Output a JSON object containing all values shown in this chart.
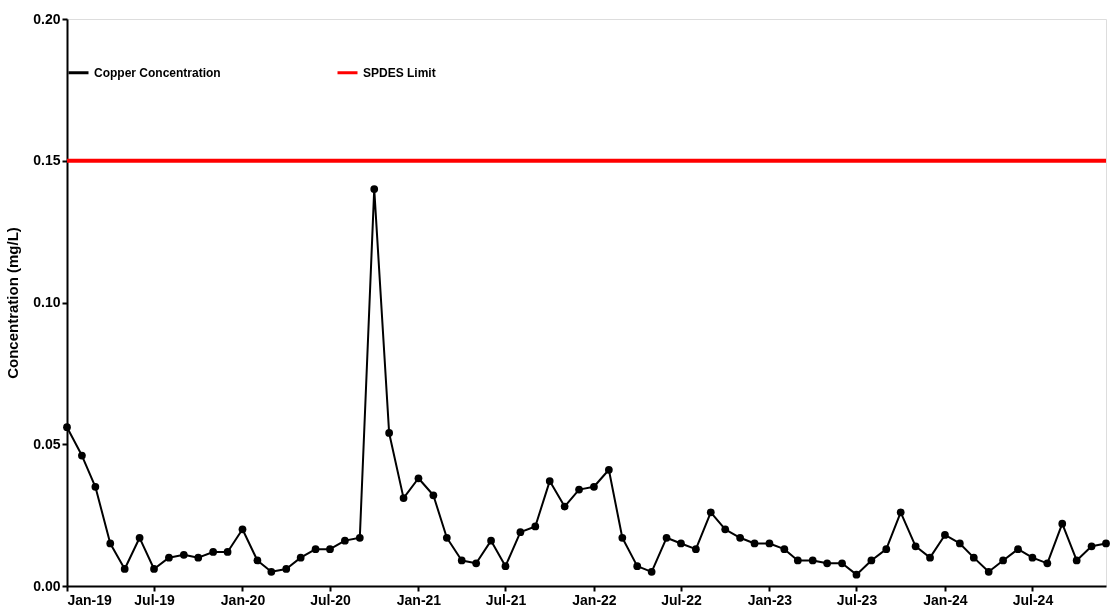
{
  "chart_data": {
    "type": "line",
    "ylabel": "Concentration (mg/L)",
    "x": [
      "2019-01",
      "2019-02",
      "2019-03",
      "2019-04",
      "2019-05",
      "2019-06",
      "2019-07",
      "2019-08",
      "2019-09",
      "2019-10",
      "2019-11",
      "2019-12",
      "2020-01",
      "2020-02",
      "2020-03",
      "2020-04",
      "2020-05",
      "2020-06",
      "2020-07",
      "2020-08",
      "2020-09",
      "2020-10",
      "2020-11",
      "2020-12",
      "2021-01",
      "2021-02",
      "2021-03",
      "2021-04",
      "2021-05",
      "2021-06",
      "2021-07",
      "2021-08",
      "2021-09",
      "2021-10",
      "2021-11",
      "2021-12",
      "2022-01",
      "2022-02",
      "2022-03",
      "2022-04",
      "2022-05",
      "2022-06",
      "2022-07",
      "2022-08",
      "2022-09",
      "2022-10",
      "2022-11",
      "2022-12",
      "2023-01",
      "2023-02",
      "2023-03",
      "2023-04",
      "2023-05",
      "2023-06",
      "2023-07",
      "2023-08",
      "2023-09",
      "2023-10",
      "2023-11",
      "2023-12",
      "2024-01",
      "2024-02",
      "2024-03",
      "2024-04",
      "2024-05",
      "2024-06",
      "2024-07",
      "2024-08",
      "2024-09",
      "2024-10",
      "2024-11",
      "2024-12"
    ],
    "series": [
      {
        "name": "Copper Concentration",
        "color": "#000000",
        "values": [
          0.056,
          0.046,
          0.035,
          0.015,
          0.006,
          0.017,
          0.006,
          0.01,
          0.011,
          0.01,
          0.012,
          0.012,
          0.02,
          0.009,
          0.005,
          0.006,
          0.01,
          0.013,
          0.013,
          0.016,
          0.017,
          0.14,
          0.054,
          0.031,
          0.038,
          0.032,
          0.017,
          0.009,
          0.008,
          0.016,
          0.007,
          0.019,
          0.021,
          0.037,
          0.028,
          0.034,
          0.035,
          0.041,
          0.017,
          0.007,
          0.005,
          0.017,
          0.015,
          0.013,
          0.026,
          0.02,
          0.017,
          0.015,
          0.015,
          0.013,
          0.009,
          0.009,
          0.008,
          0.008,
          0.004,
          0.009,
          0.013,
          0.026,
          0.014,
          0.01,
          0.018,
          0.015,
          0.01,
          0.005,
          0.009,
          0.013,
          0.01,
          0.008,
          0.022,
          0.009,
          0.014,
          0.015
        ]
      }
    ],
    "ref_lines": [
      {
        "axis": "y",
        "value": 0.15,
        "label": "SPDES Limit",
        "color": "#ff0000",
        "line_style": "solid"
      }
    ],
    "xlim": [
      "2019-01",
      "2024-12"
    ],
    "xticks": [
      {
        "value": "2019-01",
        "label": "Jan-19"
      },
      {
        "value": "2019-07",
        "label": "Jul-19"
      },
      {
        "value": "2020-01",
        "label": "Jan-20"
      },
      {
        "value": "2020-07",
        "label": "Jul-20"
      },
      {
        "value": "2021-01",
        "label": "Jan-21"
      },
      {
        "value": "2021-07",
        "label": "Jul-21"
      },
      {
        "value": "2022-01",
        "label": "Jan-22"
      },
      {
        "value": "2022-07",
        "label": "Jul-22"
      },
      {
        "value": "2023-01",
        "label": "Jan-23"
      },
      {
        "value": "2023-07",
        "label": "Jul-23"
      },
      {
        "value": "2024-01",
        "label": "Jan-24"
      },
      {
        "value": "2024-07",
        "label": "Jul-24"
      }
    ],
    "ylim": [
      0,
      0.2
    ],
    "yticks": [
      {
        "value": 0,
        "label": "0.00"
      },
      {
        "value": 0.05,
        "label": "0.05"
      },
      {
        "value": 0.1,
        "label": "0.10"
      },
      {
        "value": 0.15,
        "label": "0.15"
      },
      {
        "value": 0.2,
        "label": "0.20"
      }
    ],
    "grid": false,
    "legend": "top",
    "marker": "circle",
    "line_style": "solid"
  }
}
